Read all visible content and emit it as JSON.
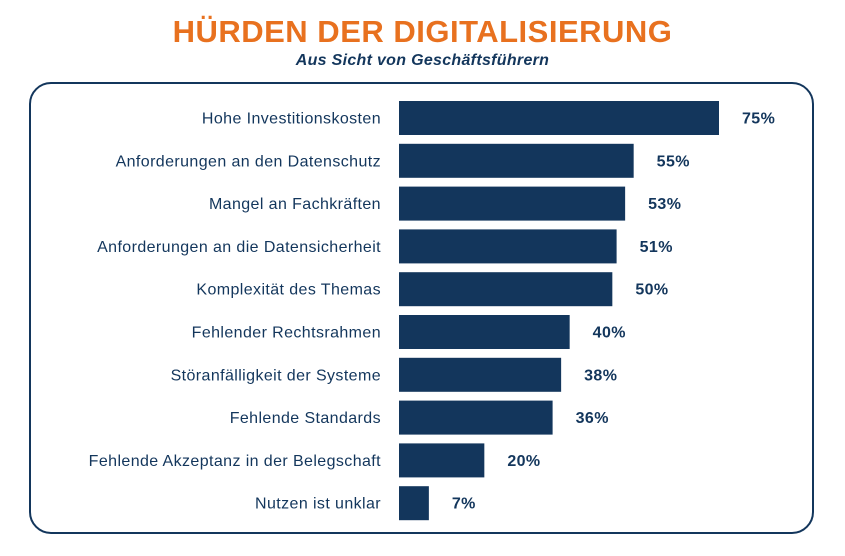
{
  "chart_data": {
    "type": "bar",
    "orientation": "horizontal",
    "title": "HÜRDEN DER DIGITALISIERUNG",
    "subtitle": "Aus Sicht von Geschäftsführern",
    "categories": [
      "Hohe Investitionskosten",
      "Anforderungen an den Datenschutz",
      "Mangel an Fachkräften",
      "Anforderungen an die Datensicherheit",
      "Komplexität des Themas",
      "Fehlender Rechtsrahmen",
      "Störanfälligkeit der Systeme",
      "Fehlende Standards",
      "Fehlende Akzeptanz in der Belegschaft",
      "Nutzen ist unklar"
    ],
    "values": [
      75,
      55,
      53,
      51,
      50,
      40,
      38,
      36,
      20,
      7
    ],
    "value_labels": [
      "75%",
      "55%",
      "53%",
      "51%",
      "50%",
      "40%",
      "38%",
      "36%",
      "20%",
      "7%"
    ],
    "unit": "%",
    "xlim": [
      0,
      75
    ],
    "bar_color": "#13365c",
    "title_color": "#e8711f",
    "text_color": "#13365c"
  }
}
